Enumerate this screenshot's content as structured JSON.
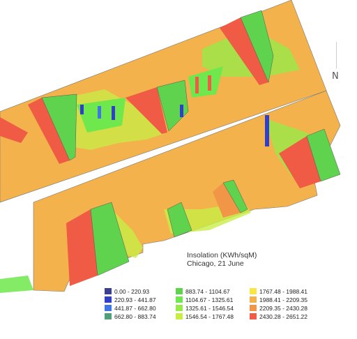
{
  "title_line1": "Insolation (KWh/sqM)",
  "title_line2": "Chicago, 21 June",
  "north": "N",
  "colors": {
    "c0": "#3a3f8f",
    "c1": "#2f3fc9",
    "c2": "#3f76e6",
    "c3": "#4fa07a",
    "c4": "#5fd34d",
    "c5": "#6ee84c",
    "c6": "#97ea4a",
    "c7": "#c8ee45",
    "c8": "#f7e644",
    "c9": "#f3b24c",
    "c10": "#f09646",
    "c11": "#ef5b44",
    "ground": "#f3b24c"
  },
  "legend": [
    {
      "label": "0.00 - 220.93",
      "color": "#3a3f8f"
    },
    {
      "label": "220.93 - 441.87",
      "color": "#2f3fc9"
    },
    {
      "label": "441.87 - 662.80",
      "color": "#3f76e6"
    },
    {
      "label": "662.80 - 883.74",
      "color": "#4fa07a"
    },
    {
      "label": "883.74 - 1104.67",
      "color": "#5fd34d"
    },
    {
      "label": "1104.67 - 1325.61",
      "color": "#6ee84c"
    },
    {
      "label": "1325.61 - 1546.54",
      "color": "#97ea4a"
    },
    {
      "label": "1546.54 - 1767.48",
      "color": "#c8ee45"
    },
    {
      "label": "1767.48 - 1988.41",
      "color": "#f7e644"
    },
    {
      "label": "1988.41 - 2209.35",
      "color": "#f3b24c"
    },
    {
      "label": "2209.35 - 2430.28",
      "color": "#f09646"
    },
    {
      "label": "2430.28 - 2651.22",
      "color": "#ef5b44"
    }
  ]
}
